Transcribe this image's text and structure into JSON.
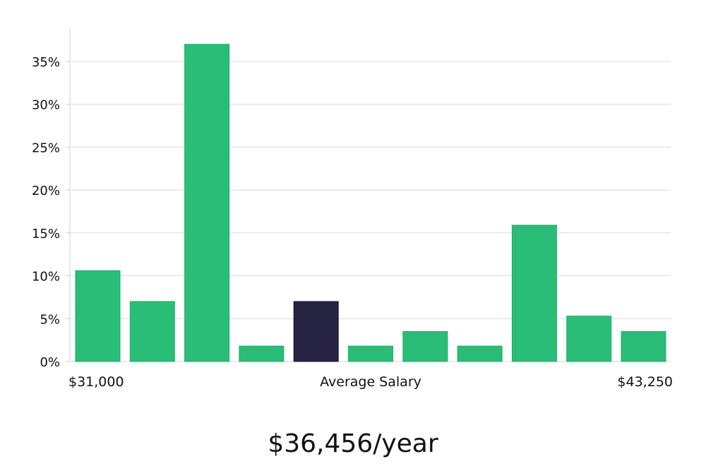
{
  "chart_data": {
    "type": "bar",
    "title": "",
    "xlabel": "Average Salary",
    "ylabel": "",
    "x_min_label": "$31,000",
    "x_max_label": "$43,250",
    "ylim": [
      0,
      38
    ],
    "yticks": [
      0,
      5,
      10,
      15,
      20,
      25,
      30,
      35
    ],
    "ytick_labels": [
      "0%",
      "5%",
      "10%",
      "15%",
      "20%",
      "25%",
      "30%",
      "35%"
    ],
    "grid": true,
    "values": [
      10.6,
      7.0,
      37.0,
      1.8,
      7.0,
      1.8,
      3.5,
      1.8,
      15.9,
      5.3,
      3.5
    ],
    "highlight_index": 4,
    "colors": {
      "bar": "#2abd77",
      "highlight": "#272443",
      "grid": "#d9d9d9",
      "axis": "#d0d0d0"
    }
  },
  "footer": {
    "salary": "$36,456/year"
  }
}
